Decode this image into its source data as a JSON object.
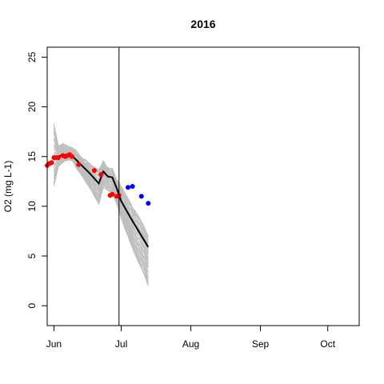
{
  "chart_data": {
    "type": "line",
    "title": "2016",
    "xlabel": "",
    "ylabel": "O2 (mg L-1)",
    "xlim": [
      "2016-05-29",
      "2016-10-15"
    ],
    "ylim": [
      -2,
      26
    ],
    "x_ticks": [
      {
        "date": "2016-06-01",
        "label": "Jun"
      },
      {
        "date": "2016-07-01",
        "label": "Jul"
      },
      {
        "date": "2016-08-01",
        "label": "Aug"
      },
      {
        "date": "2016-09-01",
        "label": "Sep"
      },
      {
        "date": "2016-10-01",
        "label": "Oct"
      }
    ],
    "y_ticks": [
      0,
      5,
      10,
      15,
      20,
      25
    ],
    "vline_date": "2016-06-30",
    "grid": false,
    "colors": {
      "ensemble": "#bebebe",
      "median": "#000000",
      "observed_fit": "#ff0000",
      "observed_forecast": "#0000ff",
      "vline": "#000000"
    },
    "series": [
      {
        "role": "ensemble-envelope",
        "x": [
          "2016-06-01",
          "2016-06-03",
          "2016-06-05",
          "2016-06-07",
          "2016-06-09",
          "2016-06-11",
          "2016-06-13",
          "2016-06-15",
          "2016-06-17",
          "2016-06-19",
          "2016-06-21",
          "2016-06-23",
          "2016-06-25",
          "2016-06-27",
          "2016-06-29",
          "2016-07-01",
          "2016-07-03",
          "2016-07-05",
          "2016-07-07",
          "2016-07-09",
          "2016-07-11",
          "2016-07-13"
        ],
        "upper": [
          18.3,
          16.1,
          16.3,
          16.1,
          15.9,
          15.6,
          15.0,
          14.7,
          14.3,
          14.0,
          13.7,
          14.6,
          13.9,
          13.8,
          12.7,
          12.0,
          11.2,
          10.4,
          9.6,
          8.9,
          8.1,
          7.0
        ],
        "lower": [
          12.0,
          14.0,
          14.4,
          14.6,
          14.6,
          13.8,
          13.2,
          12.5,
          11.8,
          11.0,
          10.2,
          11.9,
          11.6,
          11.3,
          10.2,
          8.8,
          7.5,
          6.3,
          5.2,
          4.2,
          3.2,
          2.0
        ]
      },
      {
        "role": "median",
        "x": [
          "2016-06-01",
          "2016-06-05",
          "2016-06-09",
          "2016-06-13",
          "2016-06-17",
          "2016-06-19",
          "2016-06-21",
          "2016-06-23",
          "2016-06-25",
          "2016-06-27",
          "2016-06-29",
          "2016-07-01",
          "2016-07-05",
          "2016-07-09",
          "2016-07-13"
        ],
        "values": [
          14.8,
          15.2,
          15.1,
          14.2,
          13.3,
          12.8,
          12.3,
          13.5,
          13.0,
          12.9,
          11.8,
          10.5,
          8.9,
          7.4,
          5.9
        ]
      },
      {
        "role": "observed-fit",
        "x": [
          "2016-05-29",
          "2016-05-30",
          "2016-05-31",
          "2016-06-01",
          "2016-06-02",
          "2016-06-03",
          "2016-06-05",
          "2016-06-06",
          "2016-06-07",
          "2016-06-08",
          "2016-06-09",
          "2016-06-12",
          "2016-06-19",
          "2016-06-22",
          "2016-06-26",
          "2016-06-27",
          "2016-06-29",
          "2016-06-30"
        ],
        "values": [
          14.1,
          14.3,
          14.4,
          14.9,
          14.9,
          14.9,
          15.1,
          15.0,
          15.1,
          15.2,
          15.0,
          14.2,
          13.6,
          13.2,
          11.1,
          11.2,
          11.0,
          11.1
        ]
      },
      {
        "role": "observed-forecast",
        "x": [
          "2016-07-04",
          "2016-07-06",
          "2016-07-10",
          "2016-07-13"
        ],
        "values": [
          11.9,
          12.0,
          11.0,
          10.3
        ]
      }
    ]
  }
}
